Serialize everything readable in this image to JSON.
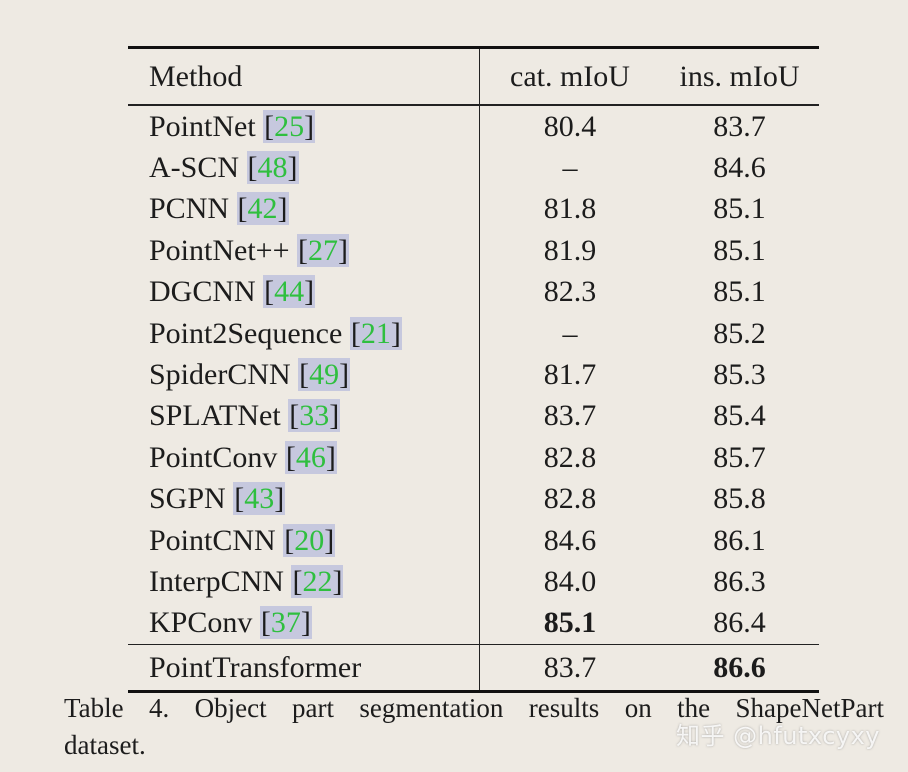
{
  "table": {
    "headers": {
      "method": "Method",
      "cat": "cat. mIoU",
      "ins": "ins. mIoU"
    },
    "rows": [
      {
        "method": "PointNet",
        "cite": "25",
        "cat": "80.4",
        "ins": "83.7"
      },
      {
        "method": "A-SCN",
        "cite": "48",
        "cat": "–",
        "ins": "84.6"
      },
      {
        "method": "PCNN",
        "cite": "42",
        "cat": "81.8",
        "ins": "85.1"
      },
      {
        "method": "PointNet++",
        "cite": "27",
        "cat": "81.9",
        "ins": "85.1"
      },
      {
        "method": "DGCNN",
        "cite": "44",
        "cat": "82.3",
        "ins": "85.1"
      },
      {
        "method": "Point2Sequence",
        "cite": "21",
        "cat": "–",
        "ins": "85.2"
      },
      {
        "method": "SpiderCNN",
        "cite": "49",
        "cat": "81.7",
        "ins": "85.3"
      },
      {
        "method": "SPLATNet",
        "cite": "33",
        "cat": "83.7",
        "ins": "85.4"
      },
      {
        "method": "PointConv",
        "cite": "46",
        "cat": "82.8",
        "ins": "85.7"
      },
      {
        "method": "SGPN",
        "cite": "43",
        "cat": "82.8",
        "ins": "85.8"
      },
      {
        "method": "PointCNN",
        "cite": "20",
        "cat": "84.6",
        "ins": "86.1"
      },
      {
        "method": "InterpCNN",
        "cite": "22",
        "cat": "84.0",
        "ins": "86.3"
      },
      {
        "method": "KPConv",
        "cite": "37",
        "cat": "85.1",
        "ins": "86.4"
      }
    ],
    "final_row": {
      "method": "PointTransformer",
      "cat": "83.7",
      "ins": "86.6"
    }
  },
  "caption": {
    "line1": "Table 4. Object part segmentation results on the ShapeNetPart",
    "line2": "dataset."
  },
  "watermark": "知乎 @hfutxcyxy",
  "colors": {
    "background": "#eeeae3",
    "citation_highlight": "#c6c8de",
    "citation_number": "#2fbf3f"
  }
}
